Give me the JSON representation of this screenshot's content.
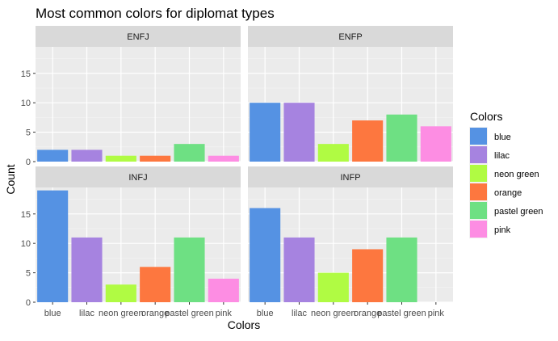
{
  "chart_data": {
    "type": "bar",
    "title": "Most common colors for diplomat types",
    "xlabel": "Colors",
    "ylabel": "Count",
    "ylim": [
      0,
      19.5
    ],
    "yticks": [
      0,
      5,
      10,
      15
    ],
    "grid": true,
    "legend": {
      "title": "Colors",
      "position": "right",
      "entries": [
        "blue",
        "lilac",
        "neon green",
        "orange",
        "pastel green",
        "pink"
      ]
    },
    "categories": [
      "blue",
      "lilac",
      "neon green",
      "orange",
      "pastel green",
      "pink"
    ],
    "colors": {
      "blue": "#5592e3",
      "lilac": "#a683e0",
      "neon green": "#b0fb43",
      "orange": "#fd773f",
      "pastel green": "#6ee083",
      "pink": "#fd8de3"
    },
    "panels": [
      {
        "name": "ENFJ",
        "values": [
          2,
          2,
          1,
          1,
          3,
          1
        ]
      },
      {
        "name": "ENFP",
        "values": [
          10,
          10,
          3,
          7,
          8,
          6
        ]
      },
      {
        "name": "INFJ",
        "values": [
          19,
          11,
          3,
          6,
          11,
          4
        ]
      },
      {
        "name": "INFP",
        "values": [
          16,
          11,
          5,
          9,
          11,
          0
        ]
      }
    ]
  }
}
